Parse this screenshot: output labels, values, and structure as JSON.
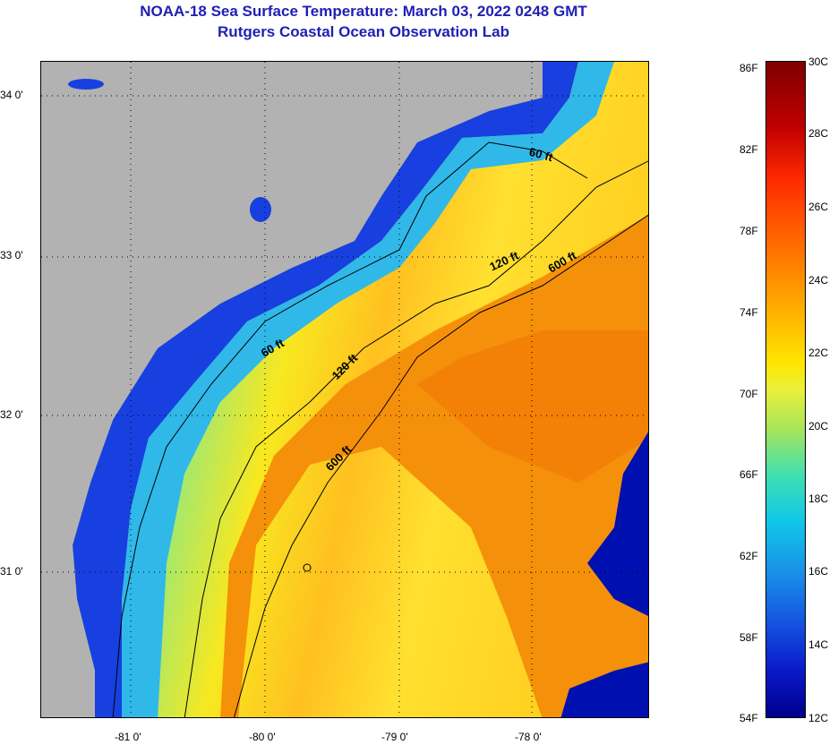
{
  "title": {
    "line1": "NOAA-18 Sea Surface Temperature:  March 03, 2022 0248 GMT",
    "line2": "Rutgers Coastal Ocean Observation Lab"
  },
  "map": {
    "lat_labels": [
      "34 0'",
      "33 0'",
      "32 0'",
      "31 0'"
    ],
    "lon_labels": [
      "-81 0'",
      "-80 0'",
      "-79 0'",
      "-78 0'"
    ],
    "contour_labels": [
      "60 ft",
      "120 ft",
      "600 ft",
      "60 ft",
      "120 ft",
      "600 ft"
    ],
    "colors": {
      "land": "#b2b2b2",
      "cold": "#0010c8",
      "cool": "#40d0e0",
      "warm": "#ffe600",
      "hot": "#f58a0a"
    }
  },
  "colorbar": {
    "fahrenheit": [
      "86F",
      "82F",
      "78F",
      "74F",
      "70F",
      "66F",
      "62F",
      "58F",
      "54F"
    ],
    "celsius": [
      "30C",
      "28C",
      "26C",
      "24C",
      "22C",
      "20C",
      "18C",
      "16C",
      "14C",
      "12C"
    ]
  }
}
